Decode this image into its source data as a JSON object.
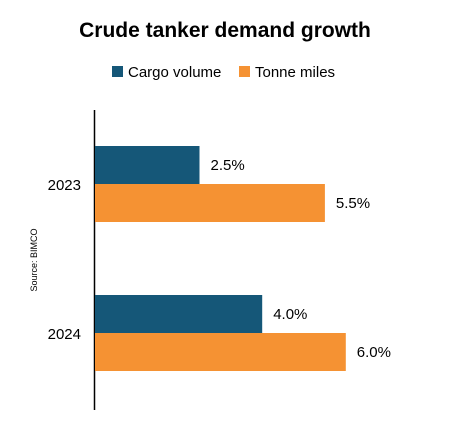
{
  "chart_data": {
    "type": "bar",
    "orientation": "horizontal",
    "title": "Crude tanker demand growth",
    "source": "Source: BIMCO",
    "categories": [
      "2023",
      "2024"
    ],
    "series": [
      {
        "name": "Cargo volume",
        "color": "#155778",
        "values": [
          2.5,
          4.0
        ],
        "labels": [
          "2.5%",
          "4.0%"
        ]
      },
      {
        "name": "Tonne miles",
        "color": "#F59233",
        "values": [
          5.5,
          6.0
        ],
        "labels": [
          "5.5%",
          "6.0%"
        ]
      }
    ],
    "xlim": [
      0,
      7
    ],
    "legend_position": "top",
    "grid": false
  }
}
